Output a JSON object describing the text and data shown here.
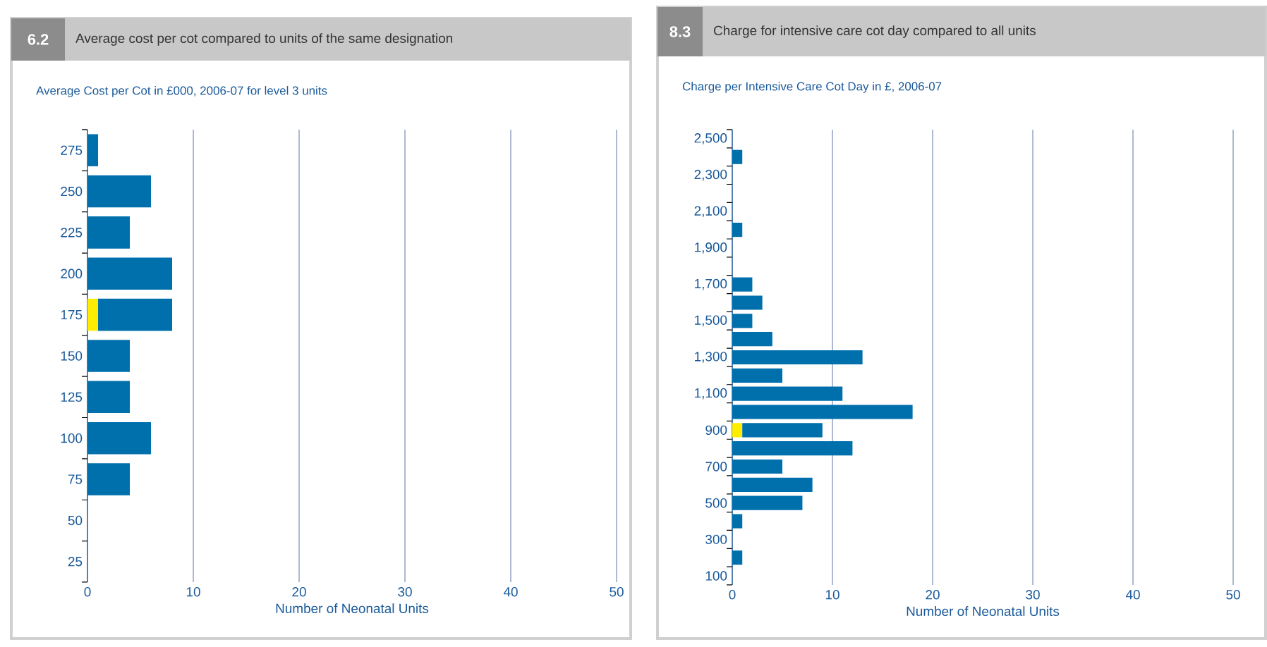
{
  "chart_data": [
    {
      "type": "bar",
      "orientation": "horizontal",
      "stacked": true,
      "annotations": [
        "6.2"
      ],
      "title": "Average cost per cot compared to units of the same designation",
      "subtitle": "Average Cost per Cot in £000, 2006-07 for level 3 units",
      "xlabel": "Number of Neonatal Units",
      "categories": [
        "275",
        "250",
        "225",
        "200",
        "175",
        "150",
        "125",
        "100",
        "75",
        "50",
        "25"
      ],
      "series": [
        {
          "color": "#ffed00",
          "values": [
            0,
            0,
            0,
            0,
            1,
            0,
            0,
            0,
            0,
            0,
            0
          ]
        },
        {
          "color": "#0070ad",
          "values": [
            1,
            6,
            4,
            8,
            7,
            4,
            4,
            6,
            4,
            0,
            0
          ]
        }
      ],
      "xlim": [
        0,
        50
      ],
      "xticks": [
        0,
        10,
        20,
        30,
        40,
        50
      ],
      "grid": "x"
    },
    {
      "type": "bar",
      "orientation": "horizontal",
      "stacked": true,
      "annotations": [
        "8.3"
      ],
      "title": "Charge for intensive care cot day compared to all units",
      "subtitle": "Charge per Intensive Care Cot Day in £, 2006-07",
      "xlabel": "Number of Neonatal Units",
      "categories": [
        "2,500",
        null,
        "2,300",
        null,
        "2,100",
        null,
        "1,900",
        null,
        "1,700",
        null,
        "1,500",
        null,
        "1,300",
        null,
        "1,100",
        null,
        "900",
        null,
        "700",
        null,
        "500",
        null,
        "300",
        null,
        "100"
      ],
      "series": [
        {
          "color": "#ffed00",
          "values": [
            0,
            0,
            0,
            0,
            0,
            0,
            0,
            0,
            0,
            0,
            0,
            0,
            0,
            0,
            0,
            0,
            1,
            0,
            0,
            0,
            0,
            0,
            0,
            0,
            0
          ]
        },
        {
          "color": "#0070ad",
          "values": [
            0,
            1,
            0,
            0,
            0,
            1,
            0,
            0,
            2,
            3,
            2,
            4,
            13,
            5,
            11,
            18,
            8,
            12,
            5,
            8,
            7,
            1,
            0,
            1,
            0
          ]
        }
      ],
      "xlim": [
        0,
        50
      ],
      "xticks": [
        0,
        10,
        20,
        30,
        40,
        50
      ],
      "grid": "x"
    }
  ]
}
